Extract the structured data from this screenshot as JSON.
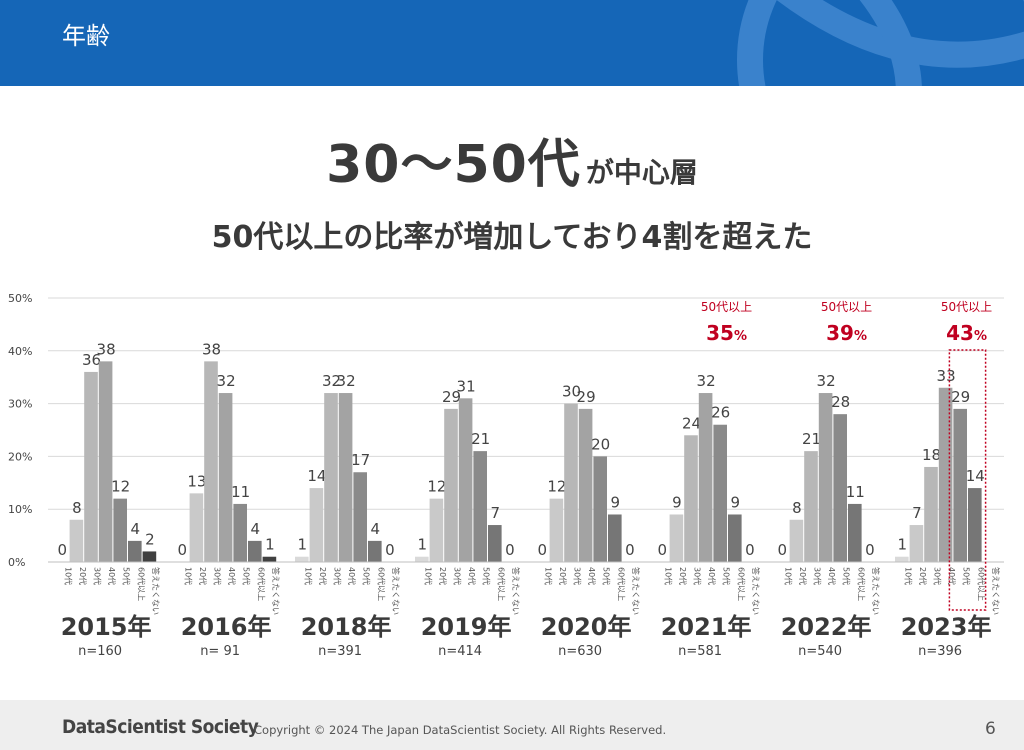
{
  "header": {
    "title": "年齢"
  },
  "headline": {
    "main": "30～50代",
    "suffix": "が中心層"
  },
  "subheadline": "50代以上の比率が増加しており4割を超えた",
  "colors": {
    "header_bg": "#1566b7",
    "highlight": "#c00020",
    "bars": [
      "#d9d9d9",
      "#c9c9c9",
      "#b7b7b7",
      "#a3a3a3",
      "#8a8a8a",
      "#767676",
      "#404040"
    ]
  },
  "chart_data": {
    "type": "bar",
    "categories": [
      "10代",
      "20代",
      "30代",
      "40代",
      "50代",
      "60代以上",
      "答えたくない"
    ],
    "y_ticks": [
      "0%",
      "10%",
      "20%",
      "30%",
      "40%",
      "50%"
    ],
    "ylim": [
      0,
      50
    ],
    "grid": true,
    "groups": [
      {
        "year": "2015年",
        "n": "n=160",
        "values": [
          0,
          8,
          36,
          38,
          12,
          4,
          2
        ],
        "labels": [
          "0",
          "8",
          "36",
          "38",
          "12",
          "4",
          "2"
        ]
      },
      {
        "year": "2016年",
        "n": "n=   91",
        "values": [
          0,
          13,
          38,
          32,
          11,
          4,
          1
        ],
        "labels": [
          "0",
          "13",
          "38",
          "32",
          "11",
          "4",
          "1"
        ]
      },
      {
        "year": "2018年",
        "n": "n=391",
        "values": [
          1,
          14,
          32,
          32,
          17,
          4,
          0
        ],
        "labels": [
          "1",
          "14",
          "32",
          "32",
          "17",
          "4",
          "0"
        ]
      },
      {
        "year": "2019年",
        "n": "n=414",
        "values": [
          1,
          12,
          29,
          31,
          21,
          7,
          0
        ],
        "labels": [
          "1",
          "12",
          "29",
          "31",
          "21",
          "7",
          "0"
        ]
      },
      {
        "year": "2020年",
        "n": "n=630",
        "values": [
          0,
          12,
          30,
          29,
          20,
          9,
          0
        ],
        "labels": [
          "0",
          "12",
          "30",
          "29",
          "20",
          "9",
          "0"
        ]
      },
      {
        "year": "2021年",
        "n": "n=581",
        "values": [
          0,
          9,
          24,
          32,
          26,
          9,
          0
        ],
        "labels": [
          "0",
          "9",
          "24",
          "32",
          "26",
          "9",
          "0"
        ]
      },
      {
        "year": "2022年",
        "n": "n=540",
        "values": [
          0,
          8,
          21,
          32,
          28,
          11,
          0
        ],
        "labels": [
          "0",
          "8",
          "21",
          "32",
          "28",
          "11",
          "0"
        ]
      },
      {
        "year": "2023年",
        "n": "n=396",
        "values": [
          1,
          7,
          18,
          33,
          29,
          14,
          0
        ],
        "labels": [
          "1",
          "7",
          "18",
          "33",
          "29",
          "14",
          ""
        ]
      }
    ],
    "annotations": [
      {
        "group": 5,
        "label": "50代以上",
        "value": "35",
        "unit": "%"
      },
      {
        "group": 6,
        "label": "50代以上",
        "value": "39",
        "unit": "%"
      },
      {
        "group": 7,
        "label": "50代以上",
        "value": "43",
        "unit": "%",
        "box": true
      }
    ]
  },
  "footer": {
    "brand": "DataScientist Society",
    "copyright": "Copyright © 2024 The Japan DataScientist Society. All Rights Reserved.",
    "page": "6"
  }
}
